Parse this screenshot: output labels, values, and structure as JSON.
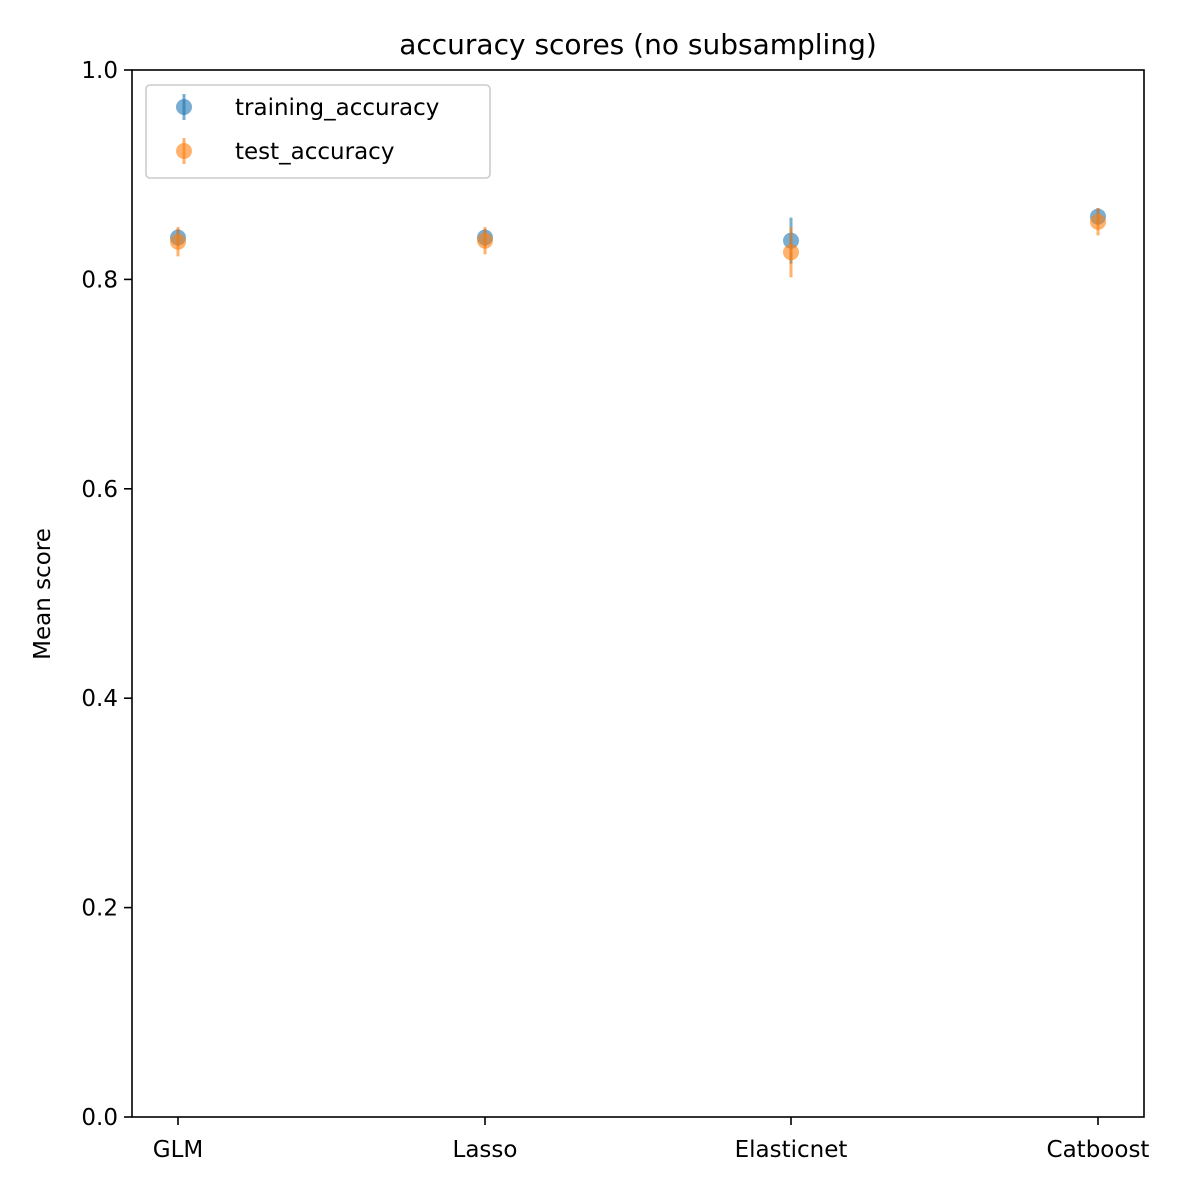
{
  "chart_data": {
    "type": "scatter",
    "title": "accuracy scores (no subsampling)",
    "xlabel": "",
    "ylabel": "Mean score",
    "ylim": [
      0,
      1
    ],
    "yticks": [
      "0.0",
      "0.2",
      "0.4",
      "0.6",
      "0.8",
      "1.0"
    ],
    "categories": [
      "GLM",
      "Lasso",
      "Elasticnet",
      "Catboost"
    ],
    "grid": false,
    "legend_position": "top-left",
    "series": [
      {
        "name": "training_accuracy",
        "color": "#1f77b4",
        "values": [
          0.84,
          0.84,
          0.837,
          0.86
        ],
        "errors": [
          0.008,
          0.008,
          0.022,
          0.008
        ]
      },
      {
        "name": "test_accuracy",
        "color": "#ff7f0e",
        "values": [
          0.836,
          0.837,
          0.826,
          0.855
        ],
        "errors": [
          0.014,
          0.013,
          0.024,
          0.013
        ]
      }
    ]
  }
}
